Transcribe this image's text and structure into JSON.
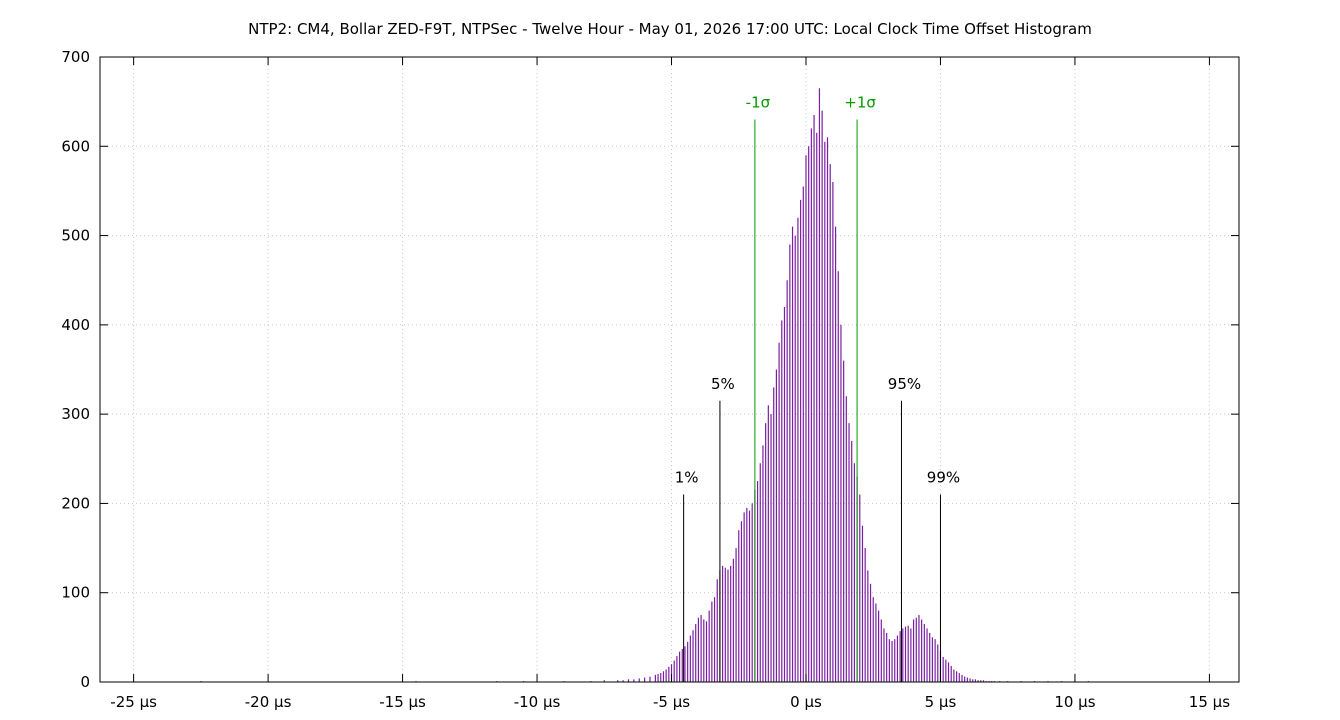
{
  "chart_data": {
    "type": "bar",
    "title": "NTP2: CM4, Bollar ZED-F9T, NTPSec - Twelve Hour - May 01, 2026 17:00 UTC: Local Clock Time Offset Histogram",
    "xlabel": "",
    "ylabel": "",
    "xlim": [
      -26.25,
      16.1
    ],
    "ylim": [
      0,
      700
    ],
    "grid": true,
    "x_ticks": [
      {
        "value": -25,
        "label": "-25 µs"
      },
      {
        "value": -20,
        "label": "-20 µs"
      },
      {
        "value": -15,
        "label": "-15 µs"
      },
      {
        "value": -10,
        "label": "-10 µs"
      },
      {
        "value": -5,
        "label": "-5 µs"
      },
      {
        "value": 0,
        "label": "0 µs"
      },
      {
        "value": 5,
        "label": "5 µs"
      },
      {
        "value": 10,
        "label": "10 µs"
      },
      {
        "value": 15,
        "label": "15 µs"
      }
    ],
    "y_ticks": [
      0,
      100,
      200,
      300,
      400,
      500,
      600,
      700
    ],
    "bar_color": "#7b1fa2",
    "series": [
      {
        "x": [
          -22.5,
          -14.5,
          -11.5,
          -10.5,
          -9.0,
          -8.0,
          -7.5,
          -7.0,
          -6.8,
          -6.6,
          -6.4,
          -6.2,
          -6.0,
          -5.8,
          -5.6,
          -5.5,
          -5.4,
          -5.3,
          -5.2,
          -5.1,
          -5.0,
          -4.9,
          -4.8,
          -4.7,
          -4.6,
          -4.5,
          -4.4,
          -4.3,
          -4.2,
          -4.1,
          -4.0,
          -3.9,
          -3.8,
          -3.7,
          -3.6,
          -3.5,
          -3.4,
          -3.3,
          -3.2,
          -3.1,
          -3.0,
          -2.9,
          -2.8,
          -2.7,
          -2.6,
          -2.5,
          -2.4,
          -2.3,
          -2.2,
          -2.1,
          -2.0,
          -1.9,
          -1.8,
          -1.7,
          -1.6,
          -1.5,
          -1.4,
          -1.3,
          -1.2,
          -1.1,
          -1.0,
          -0.9,
          -0.8,
          -0.7,
          -0.6,
          -0.5,
          -0.4,
          -0.3,
          -0.2,
          -0.1,
          0.0,
          0.1,
          0.2,
          0.3,
          0.4,
          0.5,
          0.6,
          0.7,
          0.8,
          0.9,
          1.0,
          1.1,
          1.2,
          1.3,
          1.4,
          1.5,
          1.6,
          1.7,
          1.8,
          1.9,
          2.0,
          2.1,
          2.2,
          2.3,
          2.4,
          2.5,
          2.6,
          2.7,
          2.8,
          2.9,
          3.0,
          3.1,
          3.2,
          3.3,
          3.4,
          3.5,
          3.6,
          3.7,
          3.8,
          3.9,
          4.0,
          4.1,
          4.2,
          4.3,
          4.4,
          4.5,
          4.6,
          4.7,
          4.8,
          4.9,
          5.0,
          5.1,
          5.2,
          5.3,
          5.4,
          5.5,
          5.6,
          5.7,
          5.8,
          5.9,
          6.0,
          6.1,
          6.2,
          6.3,
          6.4,
          6.5,
          6.6,
          6.7,
          6.8,
          6.9,
          7.0,
          7.2,
          7.5,
          8.0,
          8.5,
          9.0,
          9.5,
          10.5
        ],
        "values": [
          1,
          1,
          1,
          1,
          1,
          1,
          2,
          2,
          2,
          3,
          3,
          4,
          5,
          6,
          8,
          9,
          10,
          12,
          14,
          17,
          20,
          24,
          29,
          34,
          37,
          40,
          45,
          52,
          58,
          65,
          72,
          75,
          70,
          68,
          80,
          90,
          95,
          115,
          125,
          130,
          128,
          126,
          130,
          138,
          150,
          170,
          180,
          190,
          195,
          192,
          200,
          215,
          225,
          245,
          265,
          290,
          310,
          300,
          330,
          350,
          380,
          405,
          420,
          450,
          490,
          510,
          500,
          520,
          540,
          555,
          590,
          600,
          620,
          635,
          615,
          665,
          640,
          605,
          610,
          580,
          560,
          510,
          460,
          400,
          360,
          320,
          290,
          270,
          245,
          230,
          210,
          175,
          150,
          125,
          110,
          95,
          88,
          80,
          70,
          60,
          55,
          48,
          46,
          48,
          52,
          57,
          60,
          62,
          63,
          60,
          70,
          72,
          75,
          70,
          65,
          60,
          55,
          50,
          48,
          42,
          35,
          28,
          25,
          22,
          18,
          14,
          12,
          10,
          8,
          6,
          5,
          4,
          3,
          3,
          2,
          2,
          2,
          1,
          1,
          1,
          1,
          1,
          1,
          1,
          1,
          1,
          1,
          1
        ]
      }
    ],
    "markers": [
      {
        "label": "1%",
        "x": -4.55,
        "y": 210,
        "color": "#000000"
      },
      {
        "label": "5%",
        "x": -3.2,
        "y": 315,
        "color": "#000000"
      },
      {
        "label": "-1σ",
        "x": -1.9,
        "y": 630,
        "color": "#009900"
      },
      {
        "label": "+1σ",
        "x": 1.9,
        "y": 630,
        "color": "#009900"
      },
      {
        "label": "95%",
        "x": 3.55,
        "y": 315,
        "color": "#000000"
      },
      {
        "label": "99%",
        "x": 5.0,
        "y": 210,
        "color": "#000000"
      }
    ]
  }
}
